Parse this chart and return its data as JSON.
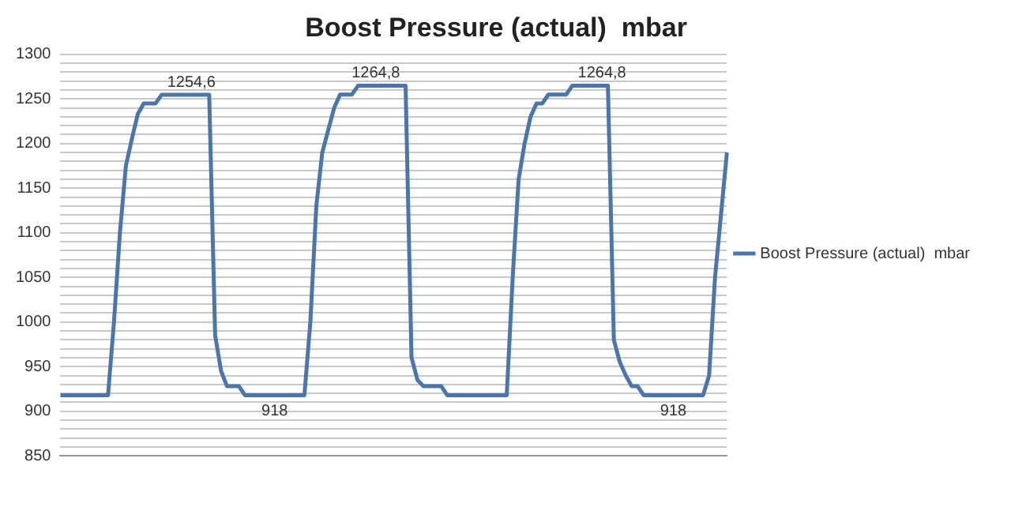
{
  "chart_data": {
    "type": "line",
    "title": "Boost Pressure (actual)  mbar",
    "categories": [
      null,
      null,
      null,
      null,
      null,
      null,
      null,
      null,
      null,
      null,
      null,
      null,
      null,
      null,
      null,
      null,
      null,
      null,
      null,
      null,
      null,
      null,
      null,
      null,
      null,
      null,
      null,
      null,
      null,
      null,
      null,
      null,
      null,
      null,
      null,
      null,
      null,
      null,
      null,
      null,
      null,
      null,
      null,
      null,
      null,
      null,
      null,
      null,
      null,
      null,
      null,
      null,
      null,
      null,
      null,
      null,
      null,
      null,
      null,
      null,
      null,
      null,
      null,
      null,
      null,
      null,
      null,
      null,
      null,
      null,
      null,
      null,
      null,
      null,
      null,
      null,
      null,
      null,
      null,
      null,
      null,
      null,
      null,
      null,
      null,
      null,
      null,
      null,
      null,
      null,
      null,
      null,
      null,
      null,
      null,
      null,
      null,
      null,
      null,
      null,
      null,
      null,
      null,
      null,
      null,
      null,
      null,
      null,
      null,
      null,
      null,
      null,
      null
    ],
    "series": [
      {
        "name": "Boost Pressure (actual)  mbar",
        "color": "#4a76ad",
        "values": [
          918,
          918,
          918,
          918,
          918,
          918,
          918,
          918,
          918,
          1000,
          1100,
          1175,
          1205,
          1233,
          1245,
          1245,
          1245,
          1254.6,
          1254.6,
          1254.6,
          1254.6,
          1254.6,
          1254.6,
          1254.6,
          1254.6,
          1254.6,
          985,
          945,
          928,
          928,
          928,
          918,
          918,
          918,
          918,
          918,
          918,
          918,
          918,
          918,
          918,
          918,
          1000,
          1130,
          1190,
          1215,
          1240,
          1255,
          1255,
          1255,
          1264.8,
          1264.8,
          1264.8,
          1264.8,
          1264.8,
          1264.8,
          1264.8,
          1264.8,
          1264.8,
          960,
          935,
          928,
          928,
          928,
          928,
          918,
          918,
          918,
          918,
          918,
          918,
          918,
          918,
          918,
          918,
          918,
          1050,
          1160,
          1200,
          1230,
          1245,
          1245,
          1255,
          1255,
          1255,
          1255,
          1264.8,
          1264.8,
          1264.8,
          1264.8,
          1264.8,
          1264.8,
          1264.8,
          980,
          955,
          940,
          928,
          928,
          918,
          918,
          918,
          918,
          918,
          918,
          918,
          918,
          918,
          918,
          918,
          940,
          1050,
          1120,
          1190
        ],
        "value_labels": [
          null,
          null,
          null,
          null,
          null,
          null,
          null,
          null,
          null,
          null,
          null,
          null,
          null,
          null,
          null,
          null,
          null,
          null,
          null,
          null,
          null,
          null,
          "1254,6",
          null,
          null,
          null,
          null,
          null,
          null,
          null,
          null,
          null,
          null,
          null,
          null,
          null,
          "918",
          null,
          null,
          null,
          null,
          null,
          null,
          null,
          null,
          null,
          null,
          null,
          null,
          null,
          null,
          null,
          null,
          "1264,8",
          null,
          null,
          null,
          null,
          null,
          null,
          null,
          null,
          null,
          null,
          null,
          null,
          null,
          null,
          null,
          null,
          null,
          null,
          null,
          null,
          null,
          null,
          null,
          null,
          null,
          null,
          null,
          null,
          null,
          null,
          null,
          null,
          null,
          null,
          null,
          null,
          null,
          "1264,8",
          null,
          null,
          null,
          null,
          null,
          null,
          null,
          null,
          null,
          null,
          null,
          "918",
          null,
          null,
          null,
          null,
          null,
          null,
          null,
          null,
          null
        ]
      }
    ],
    "ylim": [
      850,
      1300
    ],
    "yticks": [
      850,
      {
        "value": 860,
        "label": null
      },
      {
        "value": 870,
        "label": null
      },
      {
        "value": 880,
        "label": null
      },
      {
        "value": 890,
        "label": null
      },
      900,
      {
        "value": 910,
        "label": null
      },
      {
        "value": 920,
        "label": null
      },
      {
        "value": 930,
        "label": null
      },
      {
        "value": 940,
        "label": null
      },
      950,
      {
        "value": 960,
        "label": null
      },
      {
        "value": 970,
        "label": null
      },
      {
        "value": 980,
        "label": null
      },
      {
        "value": 990,
        "label": null
      },
      1000,
      {
        "value": 1010,
        "label": null
      },
      {
        "value": 1020,
        "label": null
      },
      {
        "value": 1030,
        "label": null
      },
      {
        "value": 1040,
        "label": null
      },
      1050,
      {
        "value": 1060,
        "label": null
      },
      {
        "value": 1070,
        "label": null
      },
      {
        "value": 1080,
        "label": null
      },
      {
        "value": 1090,
        "label": null
      },
      1100,
      {
        "value": 1110,
        "label": null
      },
      {
        "value": 1120,
        "label": null
      },
      {
        "value": 1130,
        "label": null
      },
      {
        "value": 1140,
        "label": null
      },
      1150,
      {
        "value": 1160,
        "label": null
      },
      {
        "value": 1170,
        "label": null
      },
      {
        "value": 1180,
        "label": null
      },
      {
        "value": 1190,
        "label": null
      },
      1200,
      {
        "value": 1210,
        "label": null
      },
      {
        "value": 1220,
        "label": null
      },
      {
        "value": 1230,
        "label": null
      },
      {
        "value": 1240,
        "label": null
      },
      1250,
      {
        "value": 1260,
        "label": null
      },
      {
        "value": 1270,
        "label": null
      },
      {
        "value": 1280,
        "label": null
      },
      {
        "value": 1290,
        "label": null
      },
      1300
    ],
    "grid": "y",
    "legend": "right",
    "marker": "none",
    "line_style": "solid"
  }
}
